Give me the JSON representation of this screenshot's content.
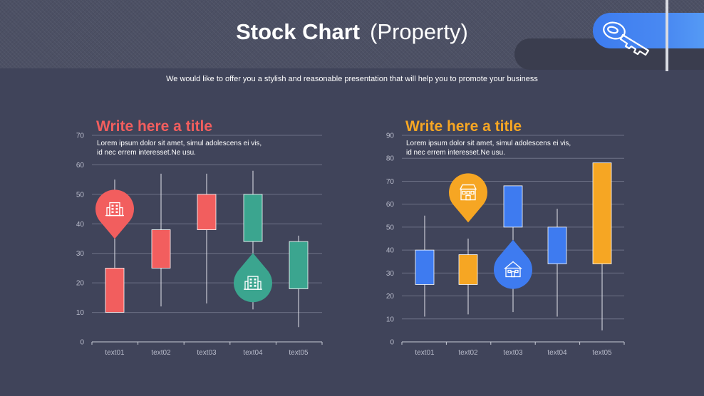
{
  "header": {
    "title_bold": "Stock Chart",
    "title_light": "(Property)",
    "subtitle": "We would like to offer you a stylish and reasonable presentation that will help you to promote your business",
    "key_icon": "key-icon"
  },
  "colors": {
    "background": "#40445a",
    "red": "#f25e5e",
    "teal": "#3ba58f",
    "blue": "#3e7bf0",
    "orange": "#f6a623"
  },
  "left_panel": {
    "title": "Write here a title",
    "title_color": "#f25e5e",
    "desc_line1": "Lorem ipsum dolor sit amet, simul adolescens ei vis,",
    "desc_line2": "id nec errem interesset.Ne usu.",
    "markers": [
      {
        "icon": "office-building-icon",
        "color": "#f25e5e",
        "shape": "pin-down",
        "category": "text01"
      },
      {
        "icon": "office-building-icon",
        "color": "#3ba58f",
        "shape": "drop-up",
        "category": "text04"
      }
    ]
  },
  "right_panel": {
    "title": "Write here a title",
    "title_color": "#f6a623",
    "desc_line1": "Lorem ipsum dolor sit amet, simul adolescens ei vis,",
    "desc_line2": "id nec errem interesset.Ne usu.",
    "markers": [
      {
        "icon": "store-building-icon",
        "color": "#f6a623",
        "shape": "pin-down",
        "category": "text02"
      },
      {
        "icon": "house-icon",
        "color": "#3e7bf0",
        "shape": "drop-up",
        "category": "text03"
      }
    ]
  },
  "chart_data": [
    {
      "type": "candlestick",
      "categories": [
        "text01",
        "text02",
        "text03",
        "text04",
        "text05"
      ],
      "ylim": [
        0,
        70
      ],
      "yticks": [
        0,
        10,
        20,
        30,
        40,
        50,
        60,
        70
      ],
      "grid": true,
      "candles": [
        {
          "category": "text01",
          "low": 10,
          "high": 55,
          "box_low": 10,
          "box_high": 25,
          "color": "#f25e5e"
        },
        {
          "category": "text02",
          "low": 12,
          "high": 57,
          "box_low": 25,
          "box_high": 38,
          "color": "#f25e5e"
        },
        {
          "category": "text03",
          "low": 13,
          "high": 57,
          "box_low": 38,
          "box_high": 50,
          "color": "#f25e5e"
        },
        {
          "category": "text04",
          "low": 11,
          "high": 58,
          "box_low": 34,
          "box_high": 50,
          "color": "#3ba58f"
        },
        {
          "category": "text05",
          "low": 5,
          "high": 36,
          "box_low": 18,
          "box_high": 34,
          "color": "#3ba58f"
        }
      ]
    },
    {
      "type": "candlestick",
      "categories": [
        "text01",
        "text02",
        "text03",
        "text04",
        "text05"
      ],
      "ylim": [
        0,
        90
      ],
      "yticks": [
        0,
        10,
        20,
        30,
        40,
        50,
        60,
        70,
        80,
        90
      ],
      "grid": true,
      "candles": [
        {
          "category": "text01",
          "low": 11,
          "high": 55,
          "box_low": 25,
          "box_high": 40,
          "color": "#3e7bf0"
        },
        {
          "category": "text02",
          "low": 12,
          "high": 45,
          "box_low": 25,
          "box_high": 38,
          "color": "#f6a623"
        },
        {
          "category": "text03",
          "low": 13,
          "high": 68,
          "box_low": 50,
          "box_high": 68,
          "color": "#3e7bf0"
        },
        {
          "category": "text04",
          "low": 11,
          "high": 58,
          "box_low": 34,
          "box_high": 50,
          "color": "#3e7bf0"
        },
        {
          "category": "text05",
          "low": 5,
          "high": 78,
          "box_low": 34,
          "box_high": 78,
          "color": "#f6a623"
        }
      ]
    }
  ]
}
